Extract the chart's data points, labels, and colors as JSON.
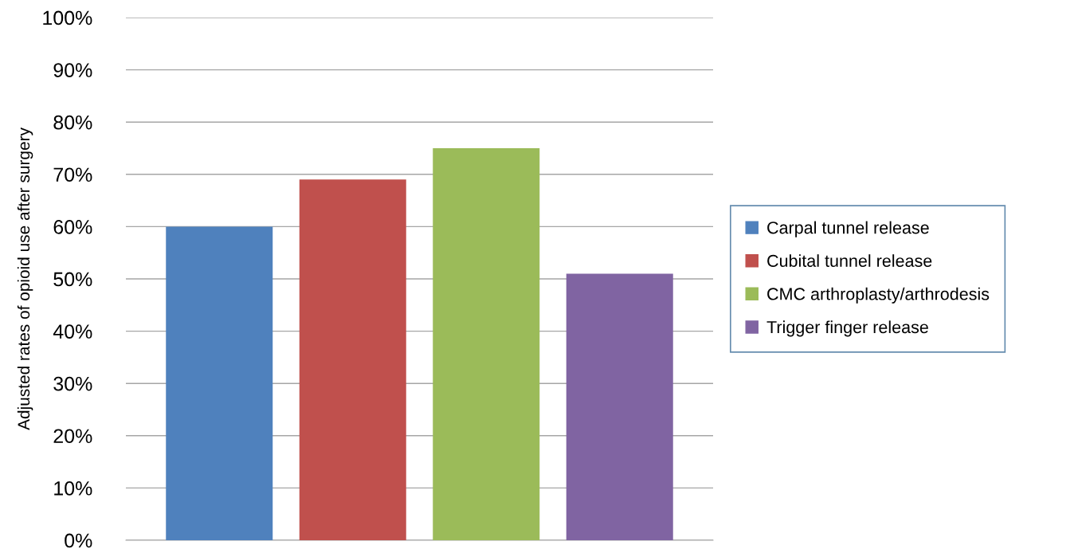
{
  "chart_data": {
    "type": "bar",
    "ylabel": "Adjusted rates of opioid use after surgery",
    "categories": [
      null,
      null,
      null,
      null
    ],
    "series": [
      {
        "name": "Carpal tunnel release",
        "color": "#4f81bd",
        "values": [
          60,
          null,
          null,
          null
        ]
      },
      {
        "name": "Cubital tunnel release",
        "color": "#c0504d",
        "values": [
          null,
          69,
          null,
          null
        ]
      },
      {
        "name": "CMC arthroplasty/arthrodesis",
        "color": "#9bbb59",
        "values": [
          null,
          null,
          75,
          null
        ]
      },
      {
        "name": "Trigger finger release",
        "color": "#8064a2",
        "values": [
          null,
          null,
          null,
          51
        ]
      }
    ],
    "ylim": [
      0,
      100
    ],
    "yticks": [
      {
        "value": 0,
        "label": "0%"
      },
      {
        "value": 10,
        "label": "10%"
      },
      {
        "value": 20,
        "label": "20%"
      },
      {
        "value": 30,
        "label": "30%"
      },
      {
        "value": 40,
        "label": "40%"
      },
      {
        "value": 50,
        "label": "50%"
      },
      {
        "value": 60,
        "label": "60%"
      },
      {
        "value": 70,
        "label": "70%"
      },
      {
        "value": 80,
        "label": "80%"
      },
      {
        "value": 90,
        "label": "90%"
      },
      {
        "value": 100,
        "label": "100%"
      }
    ],
    "grid": "y",
    "legend": "right"
  }
}
